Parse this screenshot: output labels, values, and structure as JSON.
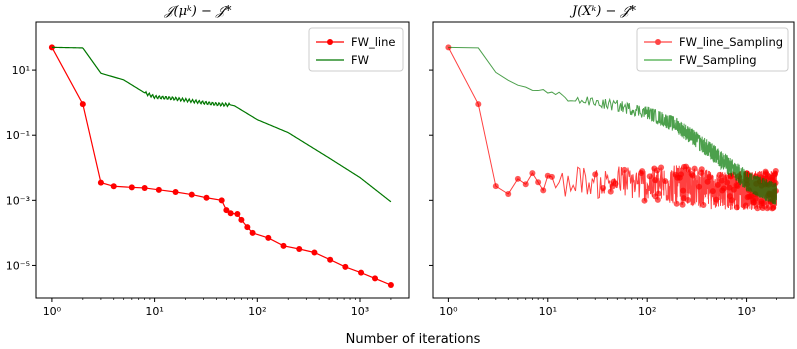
{
  "chart_data": [
    {
      "type": "line",
      "title": "𝒥(μᵏ) − 𝒥*",
      "xlabel": "Number of iterations",
      "ylabel": "",
      "xscale": "log",
      "yscale": "log",
      "xlim": [
        0.7,
        3000
      ],
      "ylim": [
        1e-06,
        300
      ],
      "x_ticks": [
        {
          "value": 1,
          "label": "10⁰"
        },
        {
          "value": 10,
          "label": "10¹"
        },
        {
          "value": 100,
          "label": "10²"
        },
        {
          "value": 1000,
          "label": "10³"
        }
      ],
      "y_ticks": [
        {
          "value": 10,
          "label": "10¹"
        },
        {
          "value": 0.1,
          "label": "10⁻¹"
        },
        {
          "value": 0.001,
          "label": "10⁻³"
        },
        {
          "value": 1e-05,
          "label": "10⁻⁵"
        }
      ],
      "legend_position": "top-right",
      "series": [
        {
          "name": "FW_line",
          "color": "#ff0000",
          "style": "line-marker",
          "x": [
            1,
            2,
            3,
            4,
            6,
            8,
            11,
            16,
            23,
            32,
            45,
            50,
            55,
            64,
            70,
            80,
            90,
            128,
            180,
            256,
            360,
            512,
            720,
            1024,
            1400,
            2000
          ],
          "y": [
            50,
            0.9,
            0.0035,
            0.0027,
            0.0025,
            0.0024,
            0.0021,
            0.0018,
            0.0015,
            0.0012,
            0.001,
            0.0005,
            0.0004,
            0.00038,
            0.00025,
            0.00015,
            0.0001,
            7e-05,
            4e-05,
            3.2e-05,
            2.5e-05,
            1.5e-05,
            9e-06,
            6e-06,
            4e-06,
            2.5e-06
          ]
        },
        {
          "name": "FW",
          "color": "#007700",
          "style": "line",
          "x": [
            1,
            2,
            3,
            5,
            8,
            10,
            15,
            20,
            30,
            40,
            55,
            60,
            100,
            200,
            500,
            1000,
            2000
          ],
          "y": [
            50,
            48,
            8,
            5,
            2,
            1.5,
            1.35,
            1.2,
            1.0,
            0.9,
            0.85,
            0.8,
            0.3,
            0.12,
            0.02,
            0.005,
            0.0009
          ]
        }
      ]
    },
    {
      "type": "line",
      "title": "J(Xᵏ) − 𝒥*",
      "xlabel": "Number of iterations",
      "ylabel": "",
      "xscale": "log",
      "yscale": "log",
      "xlim": [
        0.7,
        3000
      ],
      "ylim": [
        1e-06,
        300
      ],
      "x_ticks": [
        {
          "value": 1,
          "label": "10⁰"
        },
        {
          "value": 10,
          "label": "10¹"
        },
        {
          "value": 100,
          "label": "10²"
        },
        {
          "value": 1000,
          "label": "10³"
        }
      ],
      "legend_position": "top-right",
      "series": [
        {
          "name": "FW_line_Sampling",
          "color": "#ff0000",
          "style": "line-marker-noisy",
          "x": [
            1,
            2,
            3,
            4,
            5,
            6,
            8,
            10,
            15,
            20,
            30,
            50,
            100,
            200,
            500,
            1000,
            2000
          ],
          "y": [
            50,
            0.9,
            0.0035,
            0.0025,
            0.003,
            0.004,
            0.003,
            0.004,
            0.003,
            0.005,
            0.003,
            0.004,
            0.003,
            0.003,
            0.002,
            0.002,
            0.002
          ],
          "noise_band_log10": 0.6
        },
        {
          "name": "FW_Sampling",
          "color": "#007700",
          "style": "line-noisy",
          "x": [
            1,
            2,
            3,
            4,
            6,
            8,
            10,
            15,
            20,
            30,
            50,
            100,
            200,
            400,
            700,
            1000,
            2000
          ],
          "y": [
            50,
            48,
            8,
            5,
            3,
            2.5,
            2.0,
            1.5,
            1.2,
            1.0,
            0.8,
            0.5,
            0.2,
            0.04,
            0.01,
            0.004,
            0.0015
          ],
          "noise_band_log10": 0.35
        }
      ]
    }
  ]
}
